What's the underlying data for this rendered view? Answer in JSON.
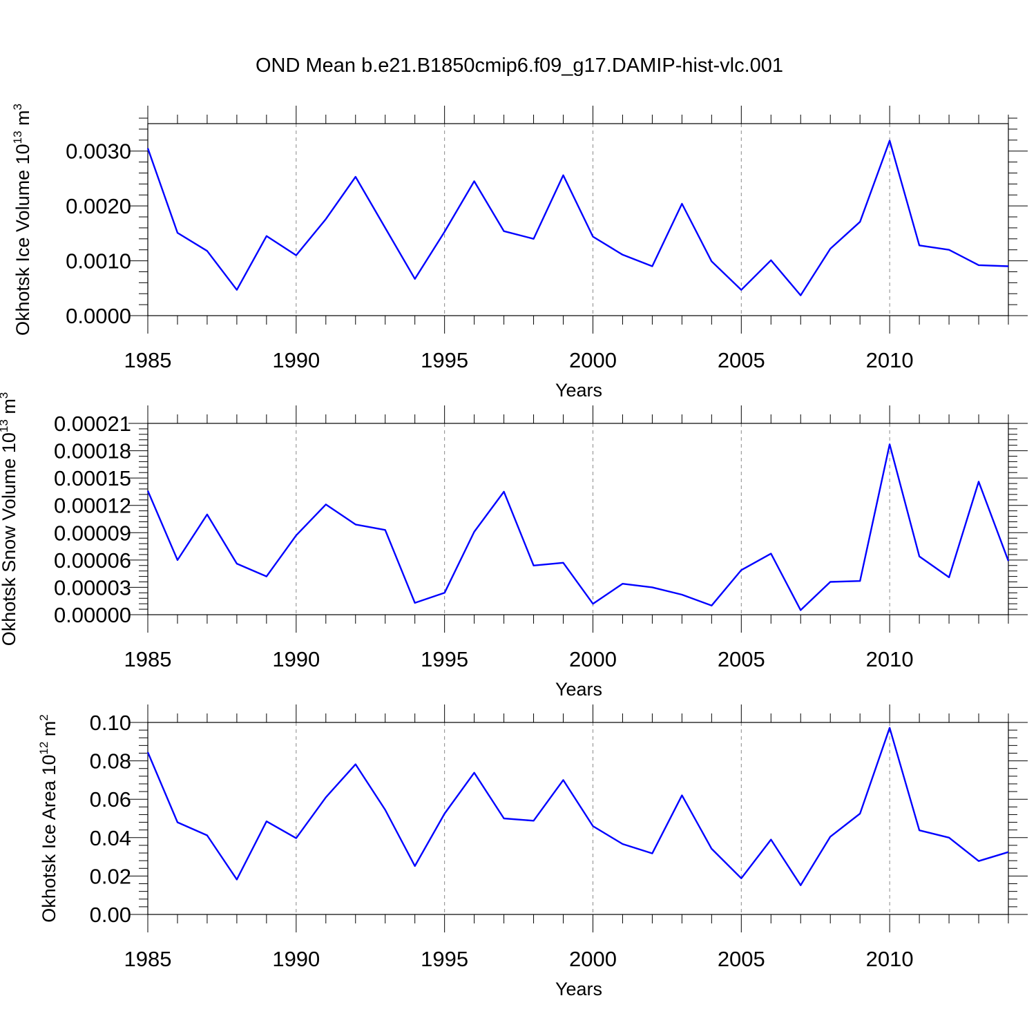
{
  "figure": {
    "title": "OND Mean b.e21.B1850cmip6.f09_g17.DAMIP-hist-vlc.001",
    "line_color": "#0000ff"
  },
  "chart_data": [
    {
      "type": "line",
      "xlabel": "Years",
      "ylabel_main": "Okhotsk Ice Volume 10",
      "ylabel_exp": "13",
      "ylabel_unit": " m",
      "ylabel_unit_exp": "3",
      "xlim": [
        1985,
        2014
      ],
      "ylim": [
        0,
        0.0035
      ],
      "xticks": [
        1985,
        1990,
        1995,
        2000,
        2005,
        2010
      ],
      "xtick_labels": [
        "1985",
        "1990",
        "1995",
        "2000",
        "2005",
        "2010"
      ],
      "yticks": [
        0,
        0.001,
        0.002,
        0.003
      ],
      "ytick_labels": [
        "0.0000",
        "0.0010",
        "0.0020",
        "0.0030"
      ],
      "x": [
        1985,
        1986,
        1987,
        1988,
        1989,
        1990,
        1991,
        1992,
        1993,
        1994,
        1995,
        1996,
        1997,
        1998,
        1999,
        2000,
        2001,
        2002,
        2003,
        2004,
        2005,
        2006,
        2007,
        2008,
        2009,
        2010,
        2011,
        2012,
        2013,
        2014
      ],
      "values": [
        0.00305,
        0.00151,
        0.00118,
        0.00047,
        0.00145,
        0.0011,
        0.00176,
        0.00253,
        0.0016,
        0.00067,
        0.00153,
        0.00245,
        0.00154,
        0.0014,
        0.00256,
        0.00144,
        0.00111,
        0.0009,
        0.00204,
        0.00099,
        0.00047,
        0.00101,
        0.00037,
        0.00122,
        0.00171,
        0.00319,
        0.00128,
        0.0012,
        0.00092,
        0.0009
      ]
    },
    {
      "type": "line",
      "xlabel": "Years",
      "ylabel_main": "Okhotsk Snow Volume 10",
      "ylabel_exp": "13",
      "ylabel_unit": " m",
      "ylabel_unit_exp": "3",
      "xlim": [
        1985,
        2014
      ],
      "ylim": [
        0,
        0.00021
      ],
      "xticks": [
        1985,
        1990,
        1995,
        2000,
        2005,
        2010
      ],
      "xtick_labels": [
        "1985",
        "1990",
        "1995",
        "2000",
        "2005",
        "2010"
      ],
      "yticks": [
        0,
        3e-05,
        6e-05,
        9e-05,
        0.00012,
        0.00015,
        0.00018,
        0.00021
      ],
      "ytick_labels": [
        "0.00000",
        "0.00003",
        "0.00006",
        "0.00009",
        "0.00012",
        "0.00015",
        "0.00018",
        "0.00021"
      ],
      "x": [
        1985,
        1986,
        1987,
        1988,
        1989,
        1990,
        1991,
        1992,
        1993,
        1994,
        1995,
        1996,
        1997,
        1998,
        1999,
        2000,
        2001,
        2002,
        2003,
        2004,
        2005,
        2006,
        2007,
        2008,
        2009,
        2010,
        2011,
        2012,
        2013,
        2014
      ],
      "values": [
        0.000136,
        6e-05,
        0.00011,
        5.6e-05,
        4.2e-05,
        8.7e-05,
        0.000121,
        9.9e-05,
        9.3e-05,
        1.3e-05,
        2.4e-05,
        9.1e-05,
        0.000135,
        5.4e-05,
        5.7e-05,
        1.2e-05,
        3.4e-05,
        3e-05,
        2.2e-05,
        1e-05,
        4.9e-05,
        6.7e-05,
        5e-06,
        3.6e-05,
        3.7e-05,
        0.000187,
        6.4e-05,
        4.1e-05,
        0.000146,
        5.9e-05
      ]
    },
    {
      "type": "line",
      "xlabel": "Years",
      "ylabel_main": "Okhotsk Ice Area 10",
      "ylabel_exp": "12",
      "ylabel_unit": " m",
      "ylabel_unit_exp": "2",
      "xlim": [
        1985,
        2014
      ],
      "ylim": [
        0,
        0.1
      ],
      "xticks": [
        1985,
        1990,
        1995,
        2000,
        2005,
        2010
      ],
      "xtick_labels": [
        "1985",
        "1990",
        "1995",
        "2000",
        "2005",
        "2010"
      ],
      "yticks": [
        0,
        0.02,
        0.04,
        0.06,
        0.08,
        0.1
      ],
      "ytick_labels": [
        "0.00",
        "0.02",
        "0.04",
        "0.06",
        "0.08",
        "0.10"
      ],
      "x": [
        1985,
        1986,
        1987,
        1988,
        1989,
        1990,
        1991,
        1992,
        1993,
        1994,
        1995,
        1996,
        1997,
        1998,
        1999,
        2000,
        2001,
        2002,
        2003,
        2004,
        2005,
        2006,
        2007,
        2008,
        2009,
        2010,
        2011,
        2012,
        2013,
        2014
      ],
      "values": [
        0.0845,
        0.048,
        0.0412,
        0.0182,
        0.0485,
        0.0397,
        0.061,
        0.0782,
        0.0545,
        0.0252,
        0.0525,
        0.0738,
        0.05,
        0.0488,
        0.07,
        0.046,
        0.0367,
        0.0318,
        0.062,
        0.0342,
        0.0188,
        0.039,
        0.0152,
        0.0405,
        0.0525,
        0.0972,
        0.0438,
        0.04,
        0.0278,
        0.0325
      ]
    }
  ]
}
